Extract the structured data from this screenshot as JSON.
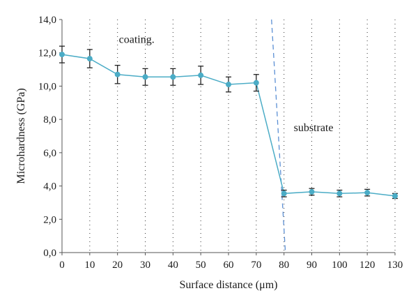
{
  "chart_data": {
    "type": "line",
    "xlabel": "Surface distance (μm)",
    "ylabel": "Microhardness (GPa)",
    "categories": [
      "0",
      "10",
      "20",
      "30",
      "40",
      "50",
      "60",
      "70",
      "80",
      "90",
      "100",
      "120",
      "130"
    ],
    "ylim": [
      0,
      14
    ],
    "yticks": [
      "0,0",
      "2,0",
      "4,0",
      "6,0",
      "8,0",
      "10,0",
      "12,0",
      "14,0"
    ],
    "grid": "vertical dotted",
    "series": [
      {
        "values": [
          11.9,
          11.65,
          10.7,
          10.55,
          10.55,
          10.65,
          10.1,
          10.2,
          3.55,
          3.65,
          3.55,
          3.6,
          3.4
        ],
        "errors": [
          0.5,
          0.55,
          0.55,
          0.5,
          0.5,
          0.55,
          0.45,
          0.5,
          0.2,
          0.2,
          0.2,
          0.2,
          0.15
        ],
        "color": "#4bacc6"
      }
    ],
    "boundary": {
      "x_top": 75.5,
      "x_bottom": 80.5,
      "color": "#5b8fd4",
      "style": "dashed"
    },
    "annotations": [
      {
        "text": "coating.",
        "x": 20.5,
        "y": 12.6
      },
      {
        "text": "substrate",
        "x": 83.5,
        "y": 7.3
      }
    ]
  }
}
